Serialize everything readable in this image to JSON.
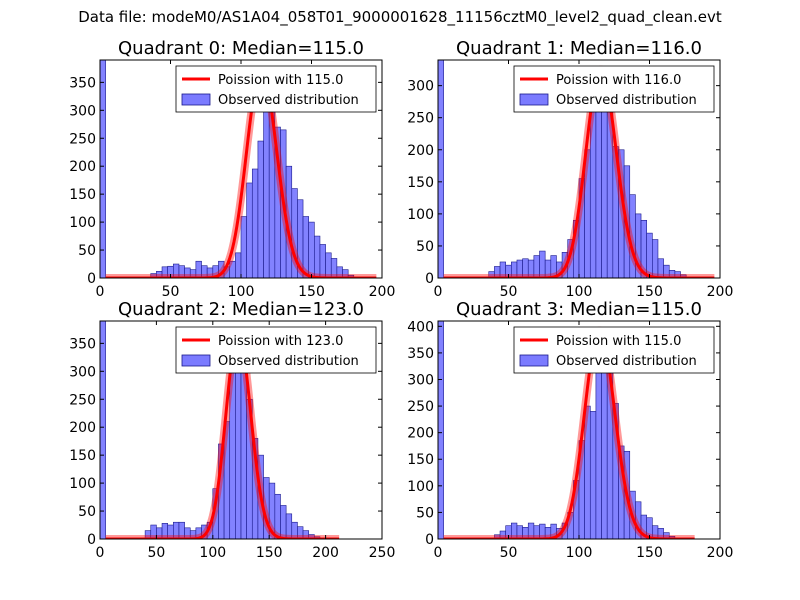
{
  "suptitle": "Data file: modeM0/AS1A04_058T01_9000001628_11156cztM0_level2_quad_clean.evt",
  "colors": {
    "poisson": "#ff0000",
    "bars": "#7b7bff",
    "bar_edge": "#1a1a8c"
  },
  "chart_data": [
    {
      "type": "bar",
      "title": "Quadrant 0: Median=115.0",
      "median": 115.0,
      "xlim": [
        0,
        200
      ],
      "ylim": [
        0,
        390
      ],
      "xticks": [
        0,
        50,
        100,
        150,
        200
      ],
      "yticks": [
        0,
        50,
        100,
        150,
        200,
        250,
        300,
        350
      ],
      "legend": [
        "Poission with 115.0",
        "Observed distribution"
      ],
      "bin_width": 4,
      "bins": [
        [
          0,
          390
        ],
        [
          36,
          8
        ],
        [
          40,
          12
        ],
        [
          44,
          20
        ],
        [
          48,
          21
        ],
        [
          52,
          25
        ],
        [
          56,
          22
        ],
        [
          60,
          18
        ],
        [
          64,
          15
        ],
        [
          68,
          30
        ],
        [
          72,
          22
        ],
        [
          76,
          18
        ],
        [
          80,
          22
        ],
        [
          84,
          30
        ],
        [
          88,
          20
        ],
        [
          92,
          30
        ],
        [
          96,
          45
        ],
        [
          100,
          110
        ],
        [
          104,
          170
        ],
        [
          108,
          195
        ],
        [
          112,
          245
        ],
        [
          116,
          360
        ],
        [
          120,
          335
        ],
        [
          124,
          270
        ],
        [
          128,
          265
        ],
        [
          132,
          200
        ],
        [
          136,
          160
        ],
        [
          140,
          140
        ],
        [
          144,
          110
        ],
        [
          148,
          100
        ],
        [
          152,
          75
        ],
        [
          156,
          60
        ],
        [
          160,
          45
        ],
        [
          164,
          35
        ],
        [
          168,
          20
        ],
        [
          172,
          15
        ],
        [
          176,
          5
        ]
      ],
      "poisson": {
        "lambda": 115.0,
        "peak": 372,
        "xmin": 4,
        "xmax": 196
      }
    },
    {
      "type": "bar",
      "title": "Quadrant 1: Median=116.0",
      "median": 116.0,
      "xlim": [
        0,
        200
      ],
      "ylim": [
        0,
        340
      ],
      "xticks": [
        0,
        50,
        100,
        150,
        200
      ],
      "yticks": [
        0,
        50,
        100,
        150,
        200,
        250,
        300
      ],
      "legend": [
        "Poission with 116.0",
        "Observed distribution"
      ],
      "bin_width": 4,
      "bins": [
        [
          0,
          340
        ],
        [
          36,
          10
        ],
        [
          40,
          18
        ],
        [
          44,
          25
        ],
        [
          48,
          20
        ],
        [
          52,
          25
        ],
        [
          56,
          28
        ],
        [
          60,
          30
        ],
        [
          64,
          28
        ],
        [
          68,
          35
        ],
        [
          72,
          42
        ],
        [
          76,
          28
        ],
        [
          80,
          35
        ],
        [
          84,
          25
        ],
        [
          88,
          40
        ],
        [
          92,
          60
        ],
        [
          96,
          90
        ],
        [
          100,
          155
        ],
        [
          104,
          200
        ],
        [
          108,
          285
        ],
        [
          112,
          320
        ],
        [
          116,
          300
        ],
        [
          120,
          265
        ],
        [
          124,
          205
        ],
        [
          128,
          200
        ],
        [
          132,
          175
        ],
        [
          136,
          130
        ],
        [
          140,
          100
        ],
        [
          144,
          90
        ],
        [
          148,
          70
        ],
        [
          152,
          60
        ],
        [
          156,
          30
        ],
        [
          160,
          20
        ],
        [
          164,
          12
        ],
        [
          168,
          10
        ],
        [
          172,
          5
        ]
      ],
      "poisson": {
        "lambda": 116.0,
        "peak": 325,
        "xmin": 4,
        "xmax": 196
      }
    },
    {
      "type": "bar",
      "title": "Quadrant 2: Median=123.0",
      "median": 123.0,
      "xlim": [
        0,
        250
      ],
      "ylim": [
        0,
        390
      ],
      "xticks": [
        0,
        50,
        100,
        150,
        200,
        250
      ],
      "yticks": [
        0,
        50,
        100,
        150,
        200,
        250,
        300,
        350
      ],
      "legend": [
        "Poission with 123.0",
        "Observed distribution"
      ],
      "bin_width": 5,
      "bins": [
        [
          0,
          390
        ],
        [
          40,
          15
        ],
        [
          45,
          25
        ],
        [
          50,
          20
        ],
        [
          55,
          28
        ],
        [
          60,
          25
        ],
        [
          65,
          30
        ],
        [
          70,
          30
        ],
        [
          75,
          20
        ],
        [
          80,
          15
        ],
        [
          85,
          20
        ],
        [
          90,
          25
        ],
        [
          95,
          30
        ],
        [
          100,
          90
        ],
        [
          105,
          170
        ],
        [
          110,
          210
        ],
        [
          115,
          345
        ],
        [
          120,
          360
        ],
        [
          125,
          305
        ],
        [
          130,
          250
        ],
        [
          135,
          180
        ],
        [
          140,
          150
        ],
        [
          145,
          110
        ],
        [
          150,
          100
        ],
        [
          155,
          80
        ],
        [
          160,
          60
        ],
        [
          165,
          45
        ],
        [
          170,
          30
        ],
        [
          175,
          22
        ],
        [
          180,
          15
        ],
        [
          185,
          8
        ],
        [
          190,
          4
        ]
      ],
      "poisson": {
        "lambda": 123.0,
        "peak": 366,
        "xmin": 5,
        "xmax": 212
      }
    },
    {
      "type": "bar",
      "title": "Quadrant 3: Median=115.0",
      "median": 115.0,
      "xlim": [
        0,
        200
      ],
      "ylim": [
        0,
        410
      ],
      "xticks": [
        0,
        50,
        100,
        150,
        200
      ],
      "yticks": [
        0,
        50,
        100,
        150,
        200,
        250,
        300,
        350,
        400
      ],
      "legend": [
        "Poission with 115.0",
        "Observed distribution"
      ],
      "bin_width": 4,
      "bins": [
        [
          0,
          410
        ],
        [
          40,
          8
        ],
        [
          44,
          15
        ],
        [
          48,
          25
        ],
        [
          52,
          30
        ],
        [
          56,
          25
        ],
        [
          60,
          22
        ],
        [
          64,
          30
        ],
        [
          68,
          25
        ],
        [
          72,
          28
        ],
        [
          76,
          22
        ],
        [
          80,
          28
        ],
        [
          84,
          20
        ],
        [
          88,
          30
        ],
        [
          92,
          50
        ],
        [
          96,
          110
        ],
        [
          100,
          185
        ],
        [
          104,
          250
        ],
        [
          108,
          240
        ],
        [
          112,
          355
        ],
        [
          116,
          365
        ],
        [
          120,
          320
        ],
        [
          124,
          255
        ],
        [
          128,
          175
        ],
        [
          132,
          165
        ],
        [
          136,
          90
        ],
        [
          140,
          70
        ],
        [
          144,
          45
        ],
        [
          148,
          40
        ],
        [
          152,
          25
        ],
        [
          156,
          20
        ],
        [
          160,
          12
        ],
        [
          164,
          5
        ]
      ],
      "poisson": {
        "lambda": 115.0,
        "peak": 392,
        "xmin": 4,
        "xmax": 182
      }
    }
  ]
}
